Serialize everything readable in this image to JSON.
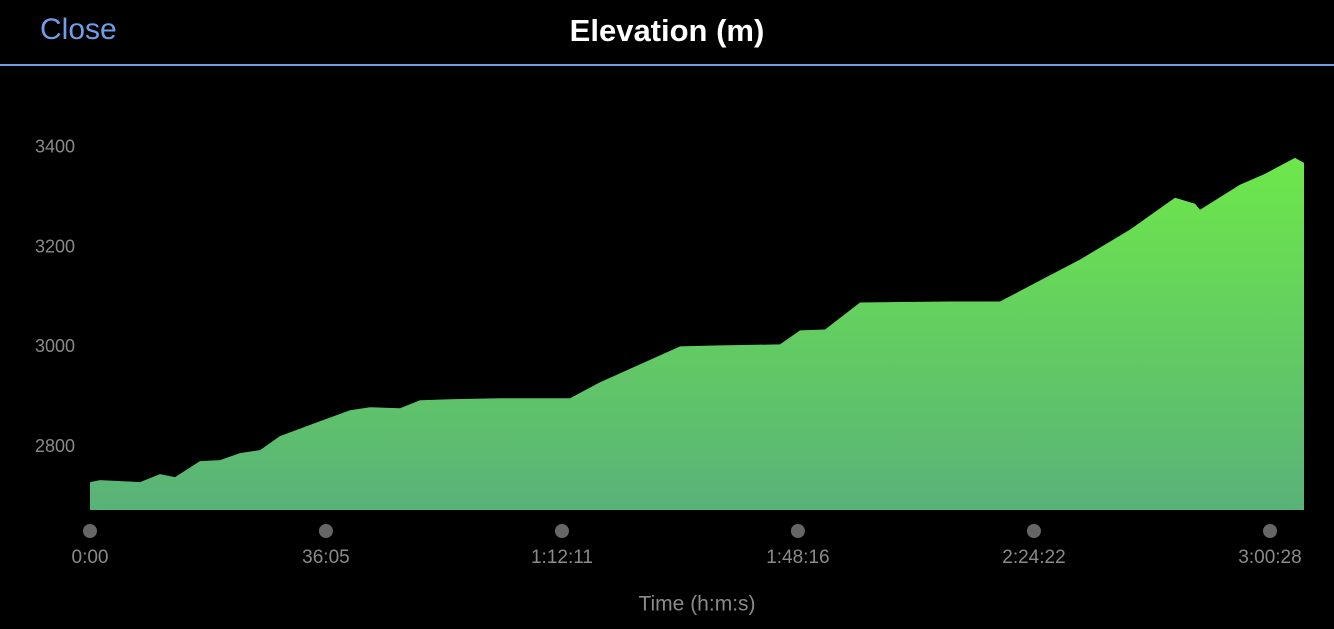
{
  "header": {
    "close": "Close"
  },
  "chart_data": {
    "type": "area",
    "title": "Elevation (m)",
    "x_label": "Time (h:m:s)",
    "x": [
      0,
      92,
      459,
      642,
      780,
      1009,
      1193,
      1376,
      1560,
      1743,
      2110,
      2386,
      2569,
      2845,
      3028,
      3303,
      3762,
      4405,
      4680,
      5047,
      5414,
      5781,
      6332,
      6515,
      6745,
      7066,
      7892,
      8350,
      8717,
      9084,
      9543,
      9956,
      10140,
      10186,
      10552,
      10782,
      11057,
      11140
    ],
    "values": [
      2730,
      2734,
      2730,
      2746,
      2740,
      2772,
      2774,
      2788,
      2794,
      2822,
      2852,
      2874,
      2880,
      2878,
      2894,
      2896,
      2898,
      2898,
      2930,
      2966,
      3002,
      3004,
      3006,
      3034,
      3036,
      3090,
      3092,
      3092,
      3134,
      3176,
      3236,
      3300,
      3288,
      3276,
      3326,
      3348,
      3380,
      3370
    ],
    "color": "#6de84a",
    "xlim": [
      0,
      11140
    ],
    "ylim": [
      2674,
      3500
    ],
    "xticks": [
      {
        "value": 0,
        "label": "0:00"
      },
      {
        "value": 2165,
        "label": "36:05"
      },
      {
        "value": 4331,
        "label": "1:12:11"
      },
      {
        "value": 6496,
        "label": "1:48:16"
      },
      {
        "value": 8662,
        "label": "2:24:22"
      },
      {
        "value": 10828,
        "label": "3:00:28"
      }
    ],
    "yticks": [
      2800,
      3000,
      3200,
      3400
    ],
    "grid": false
  }
}
